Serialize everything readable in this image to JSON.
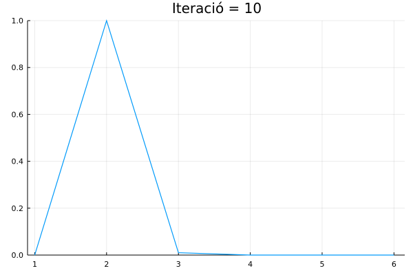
{
  "chart_data": {
    "type": "line",
    "title": "Iteració = 10",
    "xlabel": "",
    "ylabel": "",
    "xlim": [
      0.9,
      6.15
    ],
    "ylim": [
      0,
      1
    ],
    "xticks": [
      "1",
      "2",
      "3",
      "4",
      "5",
      "6"
    ],
    "yticks": [
      "0.0",
      "0.2",
      "0.4",
      "0.6",
      "0.8",
      "1.0"
    ],
    "grid": true,
    "legend": "none",
    "series": [
      {
        "color": "#009AFA",
        "x": [
          1,
          2,
          3,
          4,
          5,
          6
        ],
        "y": [
          0.0,
          1.0,
          0.01,
          0.0,
          0.0,
          0.0
        ]
      }
    ]
  }
}
